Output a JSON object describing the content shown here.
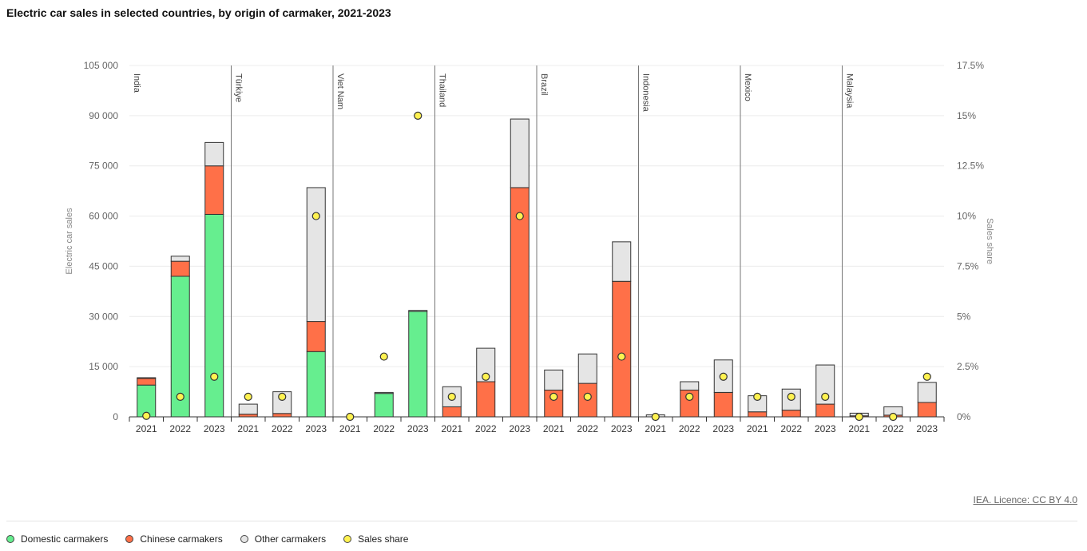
{
  "title": "Electric car sales in selected countries, by origin of carmaker, 2021-2023",
  "source": "IEA. Licence: CC BY 4.0",
  "colors": {
    "domestic": "#66ee8f",
    "chinese": "#ff7048",
    "other": "#e5e5e5",
    "share": "#fff250"
  },
  "legend": [
    {
      "key": "domestic",
      "label": "Domestic carmakers"
    },
    {
      "key": "chinese",
      "label": "Chinese carmakers"
    },
    {
      "key": "other",
      "label": "Other carmakers"
    },
    {
      "key": "share",
      "label": "Sales share"
    }
  ],
  "chart_data": {
    "type": "bar",
    "stacked": true,
    "title": "Electric car sales in selected countries, by origin of carmaker, 2021-2023",
    "ylabel": "Electric car sales",
    "y2label": "Sales share",
    "ylim": [
      0,
      105000
    ],
    "y2lim": [
      0,
      17.5
    ],
    "yticks": [
      "0",
      "15 000",
      "30 000",
      "45 000",
      "60 000",
      "75 000",
      "90 000",
      "105 000"
    ],
    "y2ticks": [
      "0%",
      "2.5%",
      "5%",
      "7.5%",
      "10%",
      "12.5%",
      "15%",
      "17.5%"
    ],
    "years": [
      "2021",
      "2022",
      "2023"
    ],
    "groups": [
      {
        "country": "India",
        "domestic": [
          9500,
          42000,
          60500
        ],
        "chinese": [
          2000,
          4500,
          14500
        ],
        "other": [
          200,
          1500,
          7000
        ],
        "share": [
          0.05,
          1,
          2
        ]
      },
      {
        "country": "Türkiye",
        "domestic": [
          0,
          0,
          19500
        ],
        "chinese": [
          800,
          1000,
          9000
        ],
        "other": [
          3000,
          6500,
          40000
        ],
        "share": [
          1,
          1,
          10
        ]
      },
      {
        "country": "Viet Nam",
        "domestic": [
          0,
          7000,
          31500
        ],
        "chinese": [
          0,
          0,
          0
        ],
        "other": [
          0,
          300,
          300
        ],
        "share": [
          0,
          3,
          15
        ]
      },
      {
        "country": "Thailand",
        "domestic": [
          0,
          0,
          0
        ],
        "chinese": [
          3000,
          10500,
          68500
        ],
        "other": [
          6000,
          10000,
          20500
        ],
        "share": [
          1,
          2,
          10
        ]
      },
      {
        "country": "Brazil",
        "domestic": [
          0,
          0,
          0
        ],
        "chinese": [
          8000,
          10000,
          40500
        ],
        "other": [
          6000,
          8800,
          11800
        ],
        "share": [
          1,
          1,
          3
        ]
      },
      {
        "country": "Indonesia",
        "domestic": [
          0,
          0,
          0
        ],
        "chinese": [
          0,
          8000,
          7300
        ],
        "other": [
          600,
          2500,
          9700
        ],
        "share": [
          0,
          1,
          2
        ]
      },
      {
        "country": "Mexico",
        "domestic": [
          0,
          0,
          0
        ],
        "chinese": [
          1500,
          2000,
          3800
        ],
        "other": [
          4800,
          6300,
          11700
        ],
        "share": [
          1,
          1,
          1
        ]
      },
      {
        "country": "Malaysia",
        "domestic": [
          0,
          0,
          0
        ],
        "chinese": [
          300,
          500,
          4300
        ],
        "other": [
          800,
          2500,
          6000
        ],
        "share": [
          0,
          0,
          2
        ]
      }
    ]
  }
}
